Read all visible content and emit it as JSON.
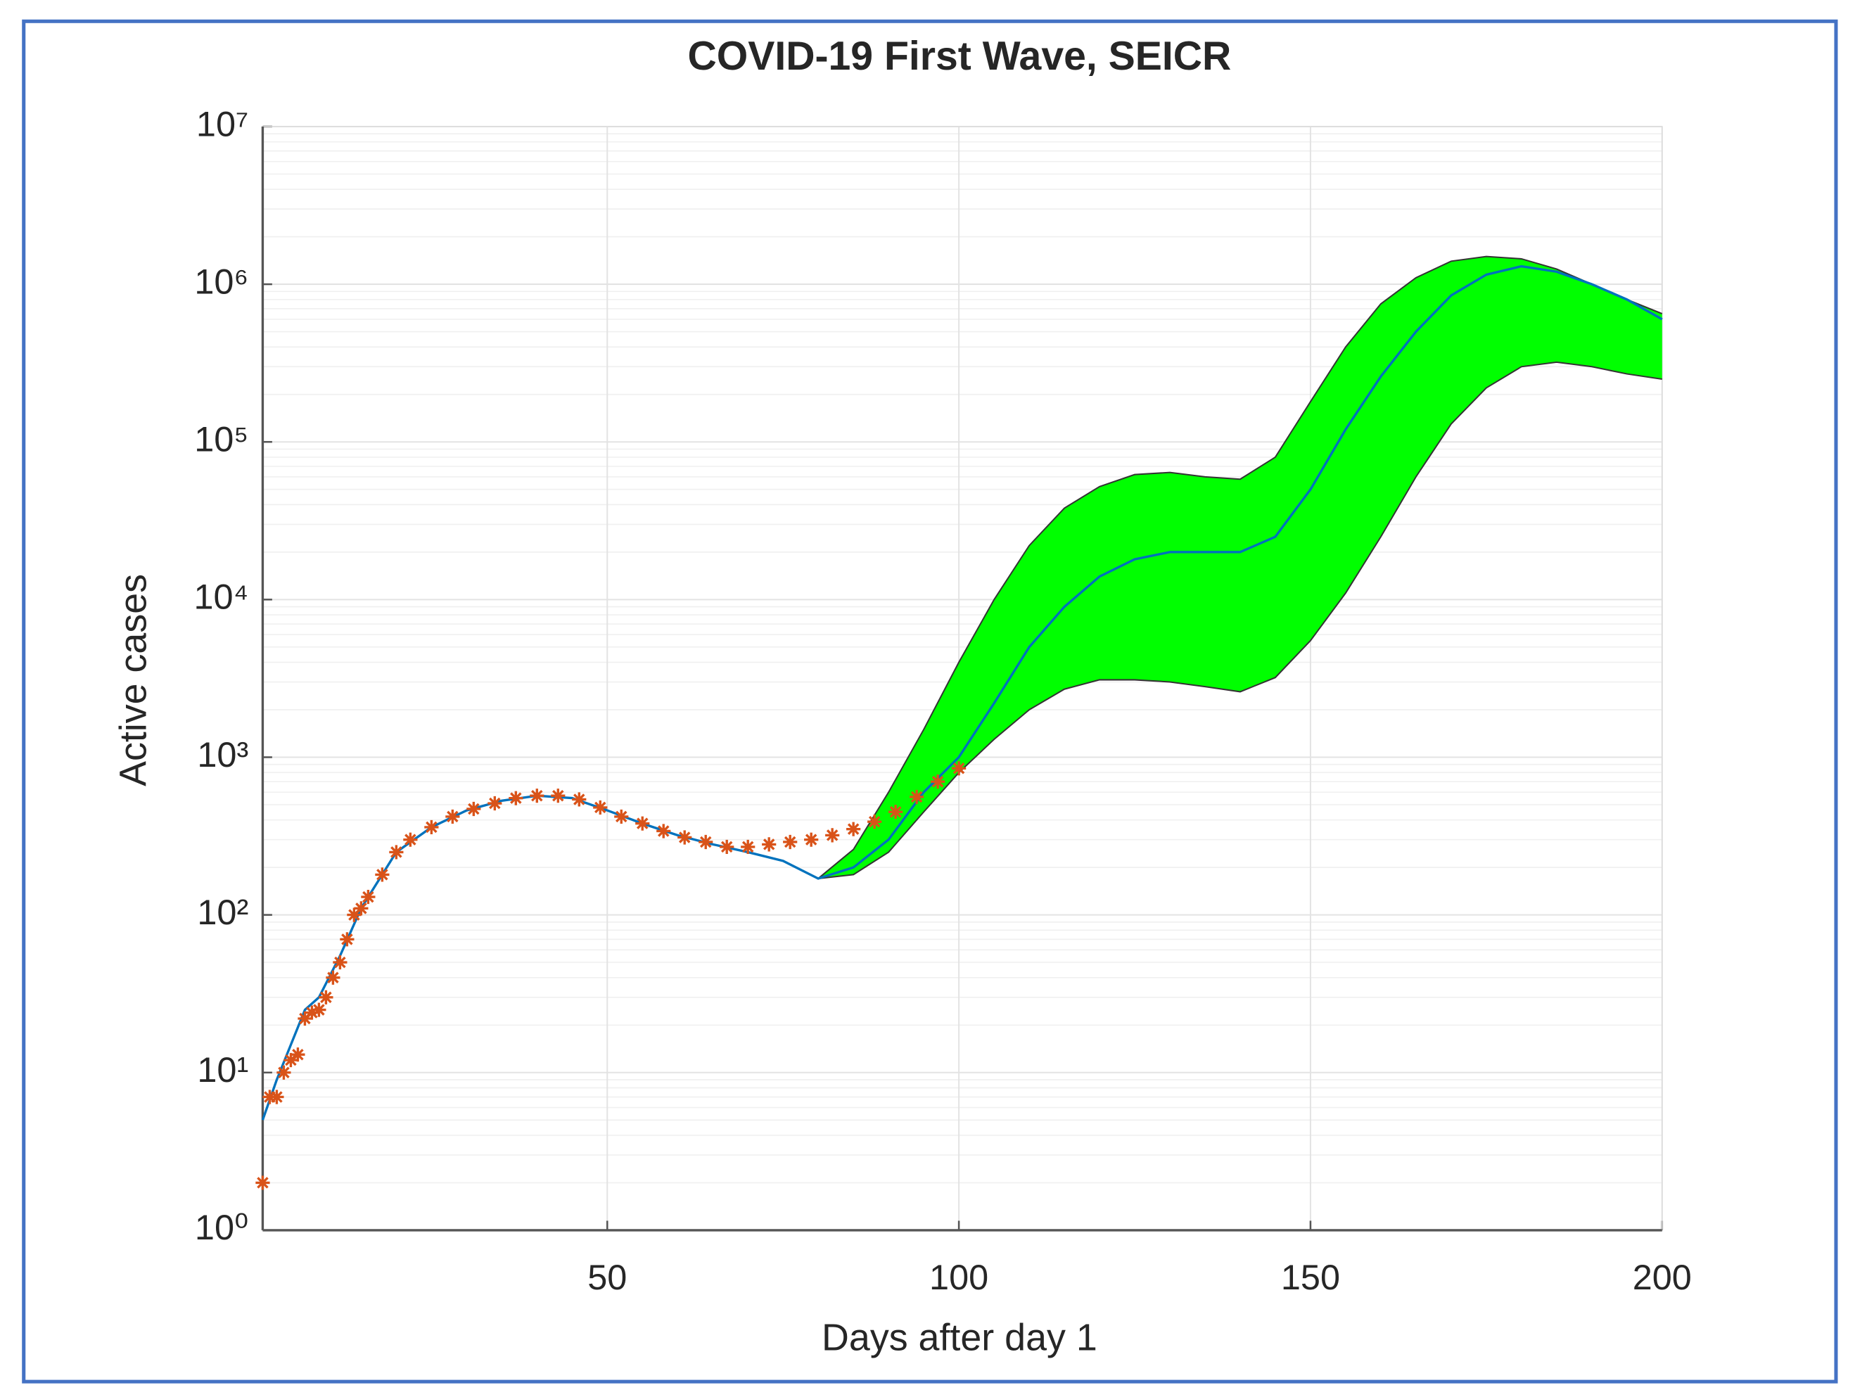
{
  "chart_data": {
    "type": "line",
    "title": "COVID-19 First Wave, SEICR",
    "xlabel": "Days after day 1",
    "ylabel": "Active cases",
    "xlim": [
      1,
      200
    ],
    "xticks": [
      50,
      100,
      150,
      200
    ],
    "ylim": [
      1,
      10000000
    ],
    "log_y": true,
    "grid": true,
    "yticks": [
      {
        "value": 1,
        "label": "10⁰"
      },
      {
        "value": 10,
        "label": "10¹"
      },
      {
        "value": 100,
        "label": "10²"
      },
      {
        "value": 1000,
        "label": "10³"
      },
      {
        "value": 10000,
        "label": "10⁴"
      },
      {
        "value": 100000,
        "label": "10⁵"
      },
      {
        "value": 1000000,
        "label": "10⁶"
      },
      {
        "value": 10000000,
        "label": "10⁷"
      }
    ],
    "series": [
      {
        "style": "band",
        "color": "#00ff00",
        "x": [
          80,
          85,
          90,
          95,
          100,
          105,
          110,
          115,
          120,
          125,
          130,
          135,
          140,
          145,
          150,
          155,
          160,
          165,
          170,
          175,
          180,
          185,
          190,
          195,
          200
        ],
        "upper": [
          170,
          260,
          600,
          1500,
          4000,
          10000,
          22000,
          38000,
          52000,
          62000,
          64000,
          60000,
          58000,
          80000,
          180000,
          400000,
          750000,
          1100000,
          1400000,
          1500000,
          1450000,
          1250000,
          1000000,
          800000,
          650000
        ],
        "lower": [
          170,
          180,
          250,
          450,
          800,
          1300,
          2000,
          2700,
          3100,
          3100,
          3000,
          2800,
          2600,
          3200,
          5500,
          11000,
          25000,
          60000,
          130000,
          220000,
          300000,
          320000,
          300000,
          270000,
          250000
        ]
      },
      {
        "style": "line",
        "color": "#0072bd",
        "x": [
          1,
          3,
          5,
          7,
          9,
          12,
          15,
          20,
          25,
          30,
          35,
          40,
          45,
          50,
          55,
          60,
          65,
          70,
          75,
          80,
          85,
          90,
          95,
          100,
          105,
          110,
          115,
          120,
          125,
          130,
          135,
          140,
          145,
          150,
          155,
          160,
          165,
          170,
          175,
          180,
          185,
          190,
          195,
          200
        ],
        "values": [
          5,
          9,
          15,
          25,
          30,
          55,
          110,
          250,
          360,
          460,
          530,
          570,
          550,
          460,
          380,
          320,
          280,
          250,
          220,
          170,
          200,
          300,
          600,
          1000,
          2200,
          5000,
          9000,
          14000,
          18000,
          20000,
          20000,
          20000,
          25000,
          50000,
          120000,
          260000,
          500000,
          850000,
          1150000,
          1300000,
          1200000,
          1000000,
          800000,
          600000
        ]
      },
      {
        "style": "markers",
        "color": "#d95319",
        "x": [
          1,
          2,
          3,
          4,
          5,
          6,
          7,
          8,
          9,
          10,
          11,
          12,
          13,
          14,
          15,
          16,
          18,
          20,
          22,
          25,
          28,
          31,
          34,
          37,
          40,
          43,
          46,
          49,
          52,
          55,
          58,
          61,
          64,
          67,
          70,
          73,
          76,
          79,
          82,
          85,
          88,
          91,
          94,
          97,
          100
        ],
        "values": [
          2,
          7,
          7,
          10,
          12,
          13,
          22,
          24,
          25,
          30,
          40,
          50,
          70,
          100,
          110,
          130,
          180,
          250,
          300,
          360,
          420,
          470,
          510,
          550,
          570,
          570,
          540,
          480,
          420,
          380,
          340,
          310,
          290,
          270,
          270,
          280,
          290,
          300,
          320,
          350,
          390,
          450,
          560,
          700,
          850
        ]
      }
    ]
  }
}
